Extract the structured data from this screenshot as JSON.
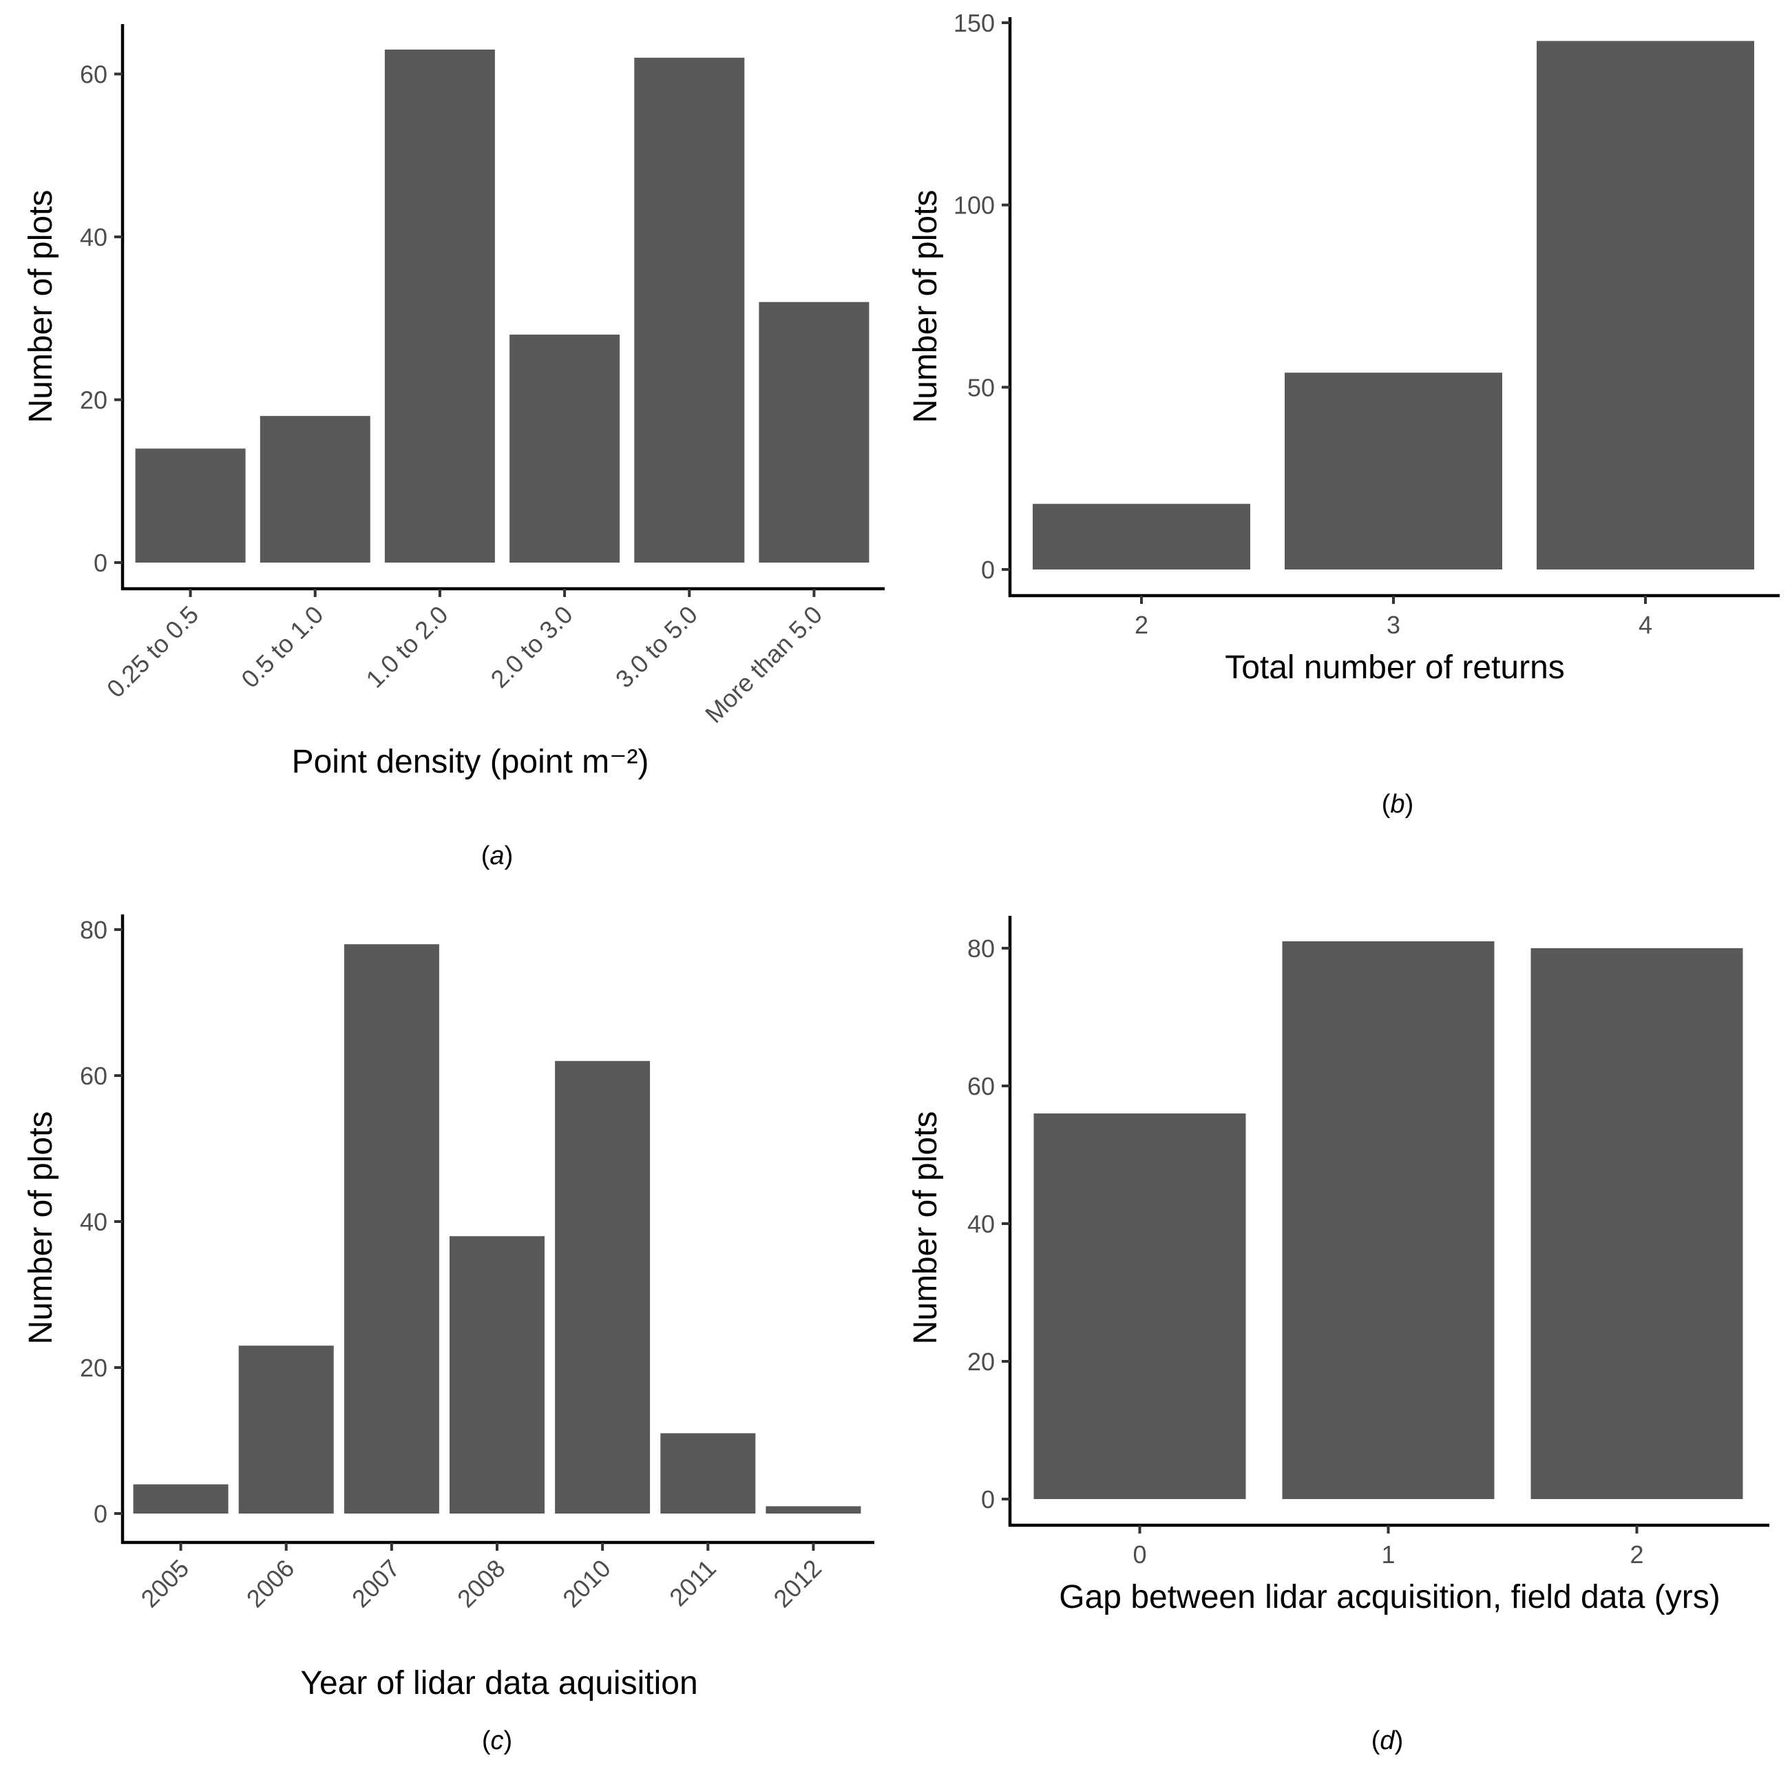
{
  "chart_data": [
    {
      "type": "bar",
      "caption": "(a)",
      "xlabel": "Point density (point m⁻²)",
      "ylabel": "Number of plots",
      "categories": [
        "0.25 to 0.5",
        "0.5 to 1.0",
        "1.0 to 2.0",
        "2.0 to 3.0",
        "3.0 to 5.0",
        "More than 5.0"
      ],
      "values": [
        14,
        18,
        63,
        28,
        62,
        32
      ],
      "yticks": [
        0,
        20,
        40,
        60
      ],
      "ylim": [
        0,
        66
      ],
      "rotated_x_labels": true,
      "bar_color": "#595959"
    },
    {
      "type": "bar",
      "caption": "(b)",
      "xlabel": "Total number of returns",
      "ylabel": "Number of plots",
      "categories": [
        "2",
        "3",
        "4"
      ],
      "values": [
        18,
        54,
        145
      ],
      "yticks": [
        0,
        50,
        100,
        150
      ],
      "ylim": [
        0,
        150
      ],
      "rotated_x_labels": false,
      "bar_color": "#595959"
    },
    {
      "type": "bar",
      "caption": "(c)",
      "xlabel": "Year of lidar data aquisition",
      "ylabel": "Number of plots",
      "categories": [
        "2005",
        "2006",
        "2007",
        "2008",
        "2010",
        "2011",
        "2012"
      ],
      "values": [
        4,
        23,
        78,
        38,
        62,
        11,
        1
      ],
      "yticks": [
        0,
        20,
        40,
        60,
        80
      ],
      "ylim": [
        0,
        80
      ],
      "rotated_x_labels": true,
      "bar_color": "#595959"
    },
    {
      "type": "bar",
      "caption": "(d)",
      "xlabel": "Gap between lidar acquisition, field data (yrs)",
      "ylabel": "Number of plots",
      "categories": [
        "0",
        "1",
        "2"
      ],
      "values": [
        56,
        81,
        80
      ],
      "yticks": [
        0,
        20,
        40,
        60,
        80
      ],
      "ylim": [
        0,
        81
      ],
      "rotated_x_labels": false,
      "bar_color": "#595959"
    }
  ]
}
